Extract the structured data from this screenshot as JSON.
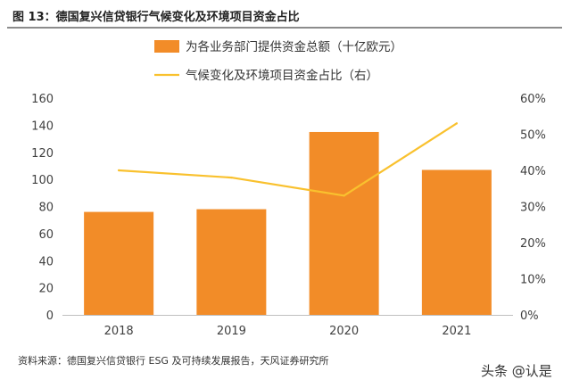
{
  "figure": {
    "title": "图 13：德国复兴信贷银行气候变化及环境项目资金占比",
    "source": "资料来源：德国复兴信贷银行 ESG 及可持续发展报告，天风证券研究所",
    "watermark": "头条 @认是"
  },
  "chart_data": {
    "type": "bar",
    "categories": [
      "2018",
      "2019",
      "2020",
      "2021"
    ],
    "series": [
      {
        "name": "为各业务部门提供资金总额（十亿欧元）",
        "type": "bar",
        "axis": "left",
        "color": "#F28C28",
        "values": [
          76,
          78,
          135,
          107
        ]
      },
      {
        "name": "气候变化及环境项目资金占比（右）",
        "type": "line",
        "axis": "right",
        "color": "#F9C12E",
        "values": [
          0.4,
          0.38,
          0.33,
          0.53
        ]
      }
    ],
    "ylim": [
      0,
      160
    ],
    "yticks": [
      "0",
      "20",
      "40",
      "60",
      "80",
      "100",
      "120",
      "140",
      "160"
    ],
    "y2lim": [
      0,
      0.6
    ],
    "y2ticks": [
      "0%",
      "10%",
      "20%",
      "30%",
      "40%",
      "50%",
      "60%"
    ],
    "legend": "top-center",
    "grid": false
  }
}
